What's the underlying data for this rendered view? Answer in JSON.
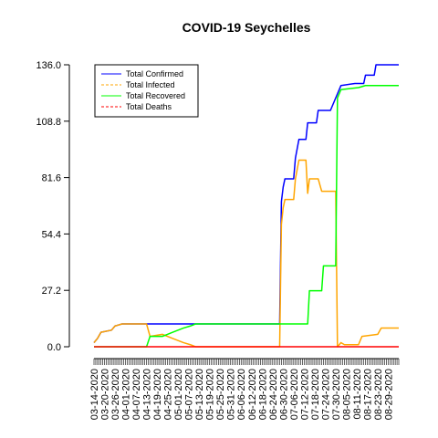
{
  "chart_data": {
    "type": "line",
    "title": "COVID-19 Seychelles",
    "xlabel": "",
    "ylabel": "",
    "ylim": [
      0,
      136
    ],
    "yticks": [
      "0.0",
      "27.2",
      "54.4",
      "81.6",
      "108.8",
      "136.0"
    ],
    "x_start": "03-14-2020",
    "x_end": "09-04-2020",
    "xtick_labels": [
      "03-14-2020",
      "03-20-2020",
      "03-26-2020",
      "04-01-2020",
      "04-07-2020",
      "04-13-2020",
      "04-19-2020",
      "04-25-2020",
      "05-01-2020",
      "05-07-2020",
      "05-13-2020",
      "05-19-2020",
      "05-25-2020",
      "05-31-2020",
      "06-06-2020",
      "06-12-2020",
      "06-18-2020",
      "06-24-2020",
      "06-30-2020",
      "07-06-2020",
      "07-12-2020",
      "07-18-2020",
      "07-24-2020",
      "07-30-2020",
      "08-05-2020",
      "08-11-2020",
      "08-17-2020",
      "08-23-2020",
      "08-29-2020"
    ],
    "legend_position": "top-left",
    "series": [
      {
        "name": "Total Confirmed",
        "color": "#0000ff",
        "dash": "solid",
        "points": [
          [
            "03-14-2020",
            2
          ],
          [
            "03-16-2020",
            4
          ],
          [
            "03-18-2020",
            7
          ],
          [
            "03-24-2020",
            8
          ],
          [
            "03-26-2020",
            10
          ],
          [
            "03-30-2020",
            11
          ],
          [
            "04-06-2020",
            11
          ],
          [
            "04-13-2020",
            11
          ],
          [
            "06-28-2020",
            11
          ],
          [
            "06-29-2020",
            70
          ],
          [
            "06-30-2020",
            77
          ],
          [
            "07-01-2020",
            81
          ],
          [
            "07-06-2020",
            81
          ],
          [
            "07-07-2020",
            91
          ],
          [
            "07-09-2020",
            100
          ],
          [
            "07-13-2020",
            100
          ],
          [
            "07-14-2020",
            108
          ],
          [
            "07-19-2020",
            108
          ],
          [
            "07-20-2020",
            114
          ],
          [
            "07-27-2020",
            114
          ],
          [
            "08-02-2020",
            126
          ],
          [
            "08-10-2020",
            127
          ],
          [
            "08-15-2020",
            127
          ],
          [
            "08-16-2020",
            131
          ],
          [
            "08-21-2020",
            131
          ],
          [
            "08-22-2020",
            136
          ],
          [
            "09-04-2020",
            136
          ]
        ]
      },
      {
        "name": "Total Infected",
        "color": "#ffa500",
        "dash": "dashed",
        "points": [
          [
            "03-14-2020",
            2
          ],
          [
            "03-16-2020",
            4
          ],
          [
            "03-18-2020",
            7
          ],
          [
            "03-24-2020",
            8
          ],
          [
            "03-26-2020",
            10
          ],
          [
            "03-30-2020",
            11
          ],
          [
            "04-13-2020",
            11
          ],
          [
            "04-15-2020",
            5
          ],
          [
            "04-22-2020",
            6
          ],
          [
            "04-28-2020",
            4
          ],
          [
            "05-04-2020",
            2
          ],
          [
            "05-08-2020",
            1
          ],
          [
            "05-11-2020",
            0
          ],
          [
            "06-28-2020",
            0
          ],
          [
            "06-29-2020",
            59
          ],
          [
            "06-30-2020",
            67
          ],
          [
            "07-01-2020",
            71
          ],
          [
            "07-06-2020",
            71
          ],
          [
            "07-07-2020",
            81
          ],
          [
            "07-09-2020",
            90
          ],
          [
            "07-13-2020",
            90
          ],
          [
            "07-14-2020",
            74
          ],
          [
            "07-15-2020",
            81
          ],
          [
            "07-20-2020",
            81
          ],
          [
            "07-22-2020",
            75
          ],
          [
            "07-30-2020",
            75
          ],
          [
            "07-31-2020",
            0
          ],
          [
            "08-02-2020",
            2
          ],
          [
            "08-04-2020",
            1
          ],
          [
            "08-12-2020",
            1
          ],
          [
            "08-14-2020",
            5
          ],
          [
            "08-23-2020",
            6
          ],
          [
            "08-25-2020",
            9
          ],
          [
            "09-04-2020",
            9
          ]
        ]
      },
      {
        "name": "Total Recovered",
        "color": "#00ff00",
        "dash": "solid",
        "points": [
          [
            "03-14-2020",
            0
          ],
          [
            "04-13-2020",
            0
          ],
          [
            "04-15-2020",
            5
          ],
          [
            "04-22-2020",
            5
          ],
          [
            "04-28-2020",
            7
          ],
          [
            "05-04-2020",
            9
          ],
          [
            "05-08-2020",
            10
          ],
          [
            "05-11-2020",
            11
          ],
          [
            "06-28-2020",
            11
          ],
          [
            "07-14-2020",
            11
          ],
          [
            "07-15-2020",
            27
          ],
          [
            "07-22-2020",
            27
          ],
          [
            "07-23-2020",
            39
          ],
          [
            "07-30-2020",
            39
          ],
          [
            "07-31-2020",
            120
          ],
          [
            "08-02-2020",
            124
          ],
          [
            "08-12-2020",
            125
          ],
          [
            "08-16-2020",
            126
          ],
          [
            "09-04-2020",
            126
          ]
        ]
      },
      {
        "name": "Total Deaths",
        "color": "#ff0000",
        "dash": "dashed",
        "points": [
          [
            "03-14-2020",
            0
          ],
          [
            "09-04-2020",
            0
          ]
        ]
      }
    ]
  }
}
